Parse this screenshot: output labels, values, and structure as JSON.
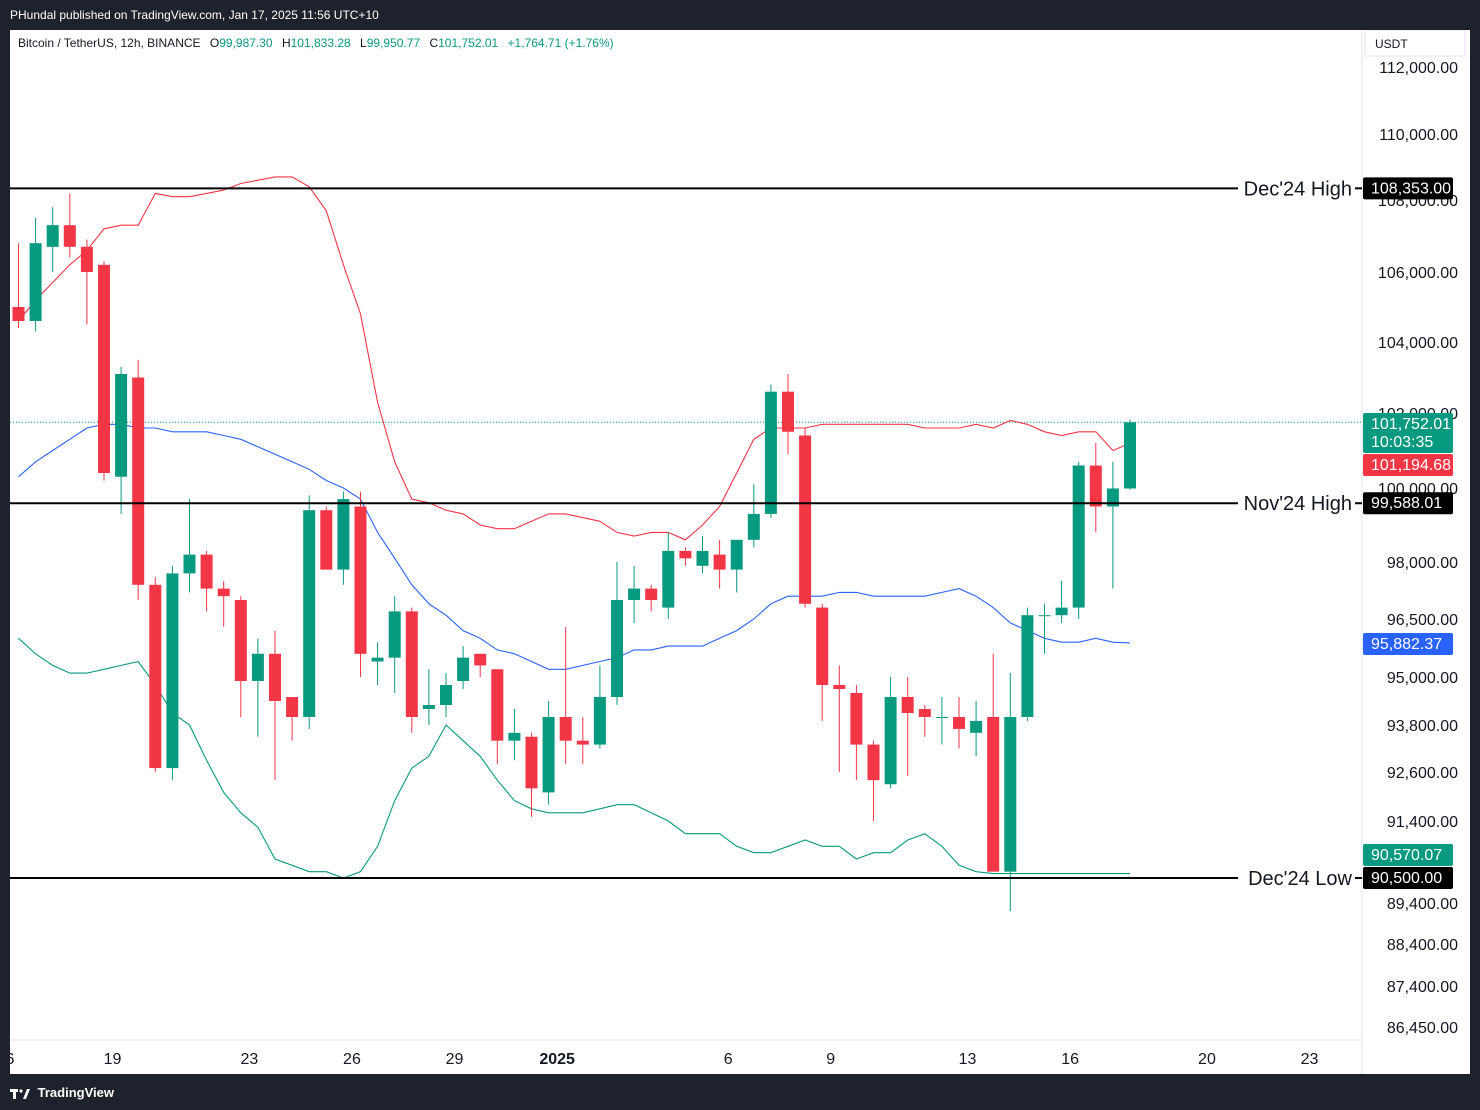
{
  "header": {
    "published": "PHundal published on TradingView.com, Jan 17, 2025 11:56 UTC+10"
  },
  "footer": {
    "brand": "TradingView"
  },
  "legend": {
    "symbol": "Bitcoin / TetherUS, 12h, BINANCE",
    "open_label": "O",
    "open": "99,987.30",
    "high_label": "H",
    "high": "101,833.28",
    "low_label": "L",
    "low": "99,950.77",
    "close_label": "C",
    "close": "101,752.01",
    "change": "+1,764.71 (+1.76%)"
  },
  "colors": {
    "up": "#089981",
    "down": "#f23645",
    "upper_band": "#f23645",
    "middle_band": "#2962ff",
    "lower_band": "#089981",
    "level_line": "#000000"
  },
  "chart_data": {
    "type": "candlestick",
    "currency": "USDT",
    "y_ticks": [
      "112,000.00",
      "110,000.00",
      "108,000.00",
      "106,000.00",
      "104,000.00",
      "102,000.00",
      "100,000.00",
      "98,000.00",
      "96,500.00",
      "95,000.00",
      "93,800.00",
      "92,600.00",
      "91,400.00",
      "89,400.00",
      "88,400.00",
      "87,400.00",
      "86,450.00"
    ],
    "x_ticks": [
      {
        "label": "6",
        "x": -0.5
      },
      {
        "label": "19",
        "x": 5.5
      },
      {
        "label": "23",
        "x": 13.5
      },
      {
        "label": "26",
        "x": 19.5
      },
      {
        "label": "29",
        "x": 25.5
      },
      {
        "label": "2025",
        "x": 31.5
      },
      {
        "label": "6",
        "x": 41.5
      },
      {
        "label": "9",
        "x": 47.5
      },
      {
        "label": "13",
        "x": 55.5
      },
      {
        "label": "16",
        "x": 61.5
      },
      {
        "label": "20",
        "x": 69.5
      },
      {
        "label": "23",
        "x": 75.5
      }
    ],
    "candles": [
      [
        105000,
        106800,
        104400,
        104600
      ],
      [
        104600,
        107500,
        104300,
        106800
      ],
      [
        106700,
        107800,
        106000,
        107300
      ],
      [
        107300,
        108200,
        106400,
        106700
      ],
      [
        106700,
        106900,
        104500,
        106000
      ],
      [
        106200,
        106300,
        100200,
        100400
      ],
      [
        100300,
        103300,
        99300,
        103100
      ],
      [
        103000,
        103500,
        97000,
        97400
      ],
      [
        97400,
        97600,
        92600,
        92700
      ],
      [
        92700,
        97900,
        92400,
        97700
      ],
      [
        97700,
        99700,
        97200,
        98200
      ],
      [
        98200,
        98300,
        96700,
        97300
      ],
      [
        97300,
        97500,
        96300,
        97100
      ],
      [
        97000,
        97100,
        94000,
        94900
      ],
      [
        94900,
        96000,
        93500,
        95600
      ],
      [
        95600,
        96200,
        92400,
        94400
      ],
      [
        94500,
        94500,
        93400,
        94000
      ],
      [
        94000,
        99800,
        93700,
        99400
      ],
      [
        99400,
        99500,
        97800,
        97800
      ],
      [
        97800,
        99900,
        97400,
        99700
      ],
      [
        99500,
        99900,
        95000,
        95600
      ],
      [
        95400,
        95900,
        94800,
        95500
      ],
      [
        95500,
        97100,
        94600,
        96700
      ],
      [
        96700,
        96800,
        93600,
        94000
      ],
      [
        94200,
        95200,
        93800,
        94300
      ],
      [
        94300,
        95100,
        94000,
        94800
      ],
      [
        94900,
        95800,
        94700,
        95500
      ],
      [
        95600,
        95600,
        95000,
        95300
      ],
      [
        95200,
        95200,
        92800,
        93400
      ],
      [
        93400,
        94200,
        92900,
        93600
      ],
      [
        93500,
        93600,
        91500,
        92200
      ],
      [
        92100,
        94400,
        91800,
        94000
      ],
      [
        94000,
        96300,
        92800,
        93400
      ],
      [
        93400,
        94000,
        92800,
        93300
      ],
      [
        93300,
        95300,
        93200,
        94500
      ],
      [
        94500,
        98000,
        94300,
        97000
      ],
      [
        97000,
        97900,
        96400,
        97300
      ],
      [
        97300,
        97400,
        96700,
        97000
      ],
      [
        96800,
        98800,
        96500,
        98300
      ],
      [
        98300,
        98400,
        97900,
        98100
      ],
      [
        97900,
        98700,
        97700,
        98300
      ],
      [
        98200,
        98600,
        97300,
        97800
      ],
      [
        97800,
        98500,
        97200,
        98600
      ],
      [
        98600,
        100100,
        98400,
        99300
      ],
      [
        99300,
        102800,
        99200,
        102600
      ],
      [
        102600,
        103100,
        100900,
        101500
      ],
      [
        101400,
        101600,
        96800,
        96900
      ],
      [
        96800,
        96900,
        93900,
        94800
      ],
      [
        94800,
        95300,
        92600,
        94700
      ],
      [
        94600,
        94800,
        92400,
        93300
      ],
      [
        93300,
        93400,
        91400,
        92400
      ],
      [
        92300,
        95000,
        92200,
        94500
      ],
      [
        94500,
        95000,
        92500,
        94100
      ],
      [
        94200,
        94300,
        93500,
        94000
      ],
      [
        94000,
        94500,
        93300,
        94000
      ],
      [
        94000,
        94500,
        93200,
        93700
      ],
      [
        93600,
        94400,
        93000,
        93900
      ],
      [
        94000,
        95600,
        90600,
        90600
      ],
      [
        90600,
        95100,
        89200,
        94000
      ],
      [
        94000,
        96800,
        93900,
        96600
      ],
      [
        96600,
        96900,
        95600,
        96600
      ],
      [
        96600,
        97500,
        96400,
        96800
      ],
      [
        96800,
        100700,
        96500,
        100600
      ],
      [
        100600,
        101200,
        98800,
        99500
      ],
      [
        99500,
        100700,
        97300,
        99987
      ],
      [
        99987,
        101833,
        99950,
        101752
      ]
    ],
    "upper_band": [
      104600,
      105200,
      105700,
      106200,
      106600,
      107200,
      107300,
      107300,
      108200,
      108100,
      108100,
      108200,
      108300,
      108500,
      108600,
      108700,
      108700,
      108400,
      107700,
      106200,
      104800,
      102300,
      100700,
      99700,
      99600,
      99400,
      99300,
      99000,
      98900,
      98900,
      99100,
      99300,
      99300,
      99200,
      99100,
      98800,
      98700,
      98800,
      98800,
      98600,
      99000,
      99500,
      100400,
      101300,
      101600,
      101600,
      101600,
      101700,
      101700,
      101700,
      101700,
      101700,
      101700,
      101600,
      101600,
      101600,
      101700,
      101600,
      101800,
      101700,
      101500,
      101400,
      101500,
      101500,
      101000,
      101194
    ],
    "middle_band": [
      100300,
      100700,
      101000,
      101300,
      101600,
      101700,
      101700,
      101600,
      101600,
      101500,
      101500,
      101500,
      101400,
      101300,
      101100,
      100900,
      100700,
      100500,
      100200,
      100000,
      99700,
      98800,
      98100,
      97400,
      96900,
      96600,
      96200,
      96000,
      95700,
      95600,
      95400,
      95200,
      95200,
      95300,
      95400,
      95500,
      95700,
      95700,
      95800,
      95800,
      95800,
      96000,
      96200,
      96500,
      96900,
      97100,
      97100,
      97100,
      97200,
      97200,
      97100,
      97100,
      97100,
      97100,
      97200,
      97300,
      97100,
      96800,
      96400,
      96200,
      96000,
      95900,
      95900,
      96000,
      95900,
      95882
    ],
    "lower_band": [
      96000,
      95600,
      95300,
      95100,
      95100,
      95200,
      95300,
      95400,
      94800,
      94100,
      93800,
      92900,
      92100,
      91600,
      91300,
      90800,
      90700,
      90600,
      90600,
      90500,
      90600,
      91000,
      91900,
      92700,
      93000,
      93800,
      93400,
      93000,
      92400,
      91900,
      91700,
      91600,
      91600,
      91600,
      91700,
      91800,
      91800,
      91600,
      91400,
      91200,
      91200,
      91200,
      91000,
      90900,
      90900,
      91000,
      91100,
      91000,
      91000,
      90800,
      90900,
      90900,
      91100,
      91200,
      91000,
      90700,
      90600,
      90570,
      90570,
      90570,
      90570,
      90570,
      90570,
      90570,
      90570,
      90570
    ],
    "levels": [
      {
        "label": "Dec'24 High",
        "value": 108353,
        "tag": "108,353.00"
      },
      {
        "label": "Nov'24 High",
        "value": 99588.01,
        "tag": "99,588.01"
      },
      {
        "label": "Dec'24 Low",
        "value": 90500,
        "tag": "90,500.00"
      }
    ],
    "tags": {
      "last_price": "101,752.01",
      "countdown": "10:03:35",
      "upper_band": "101,194.68",
      "middle_band": "95,882.37",
      "lower_band": "90,570.07"
    }
  }
}
